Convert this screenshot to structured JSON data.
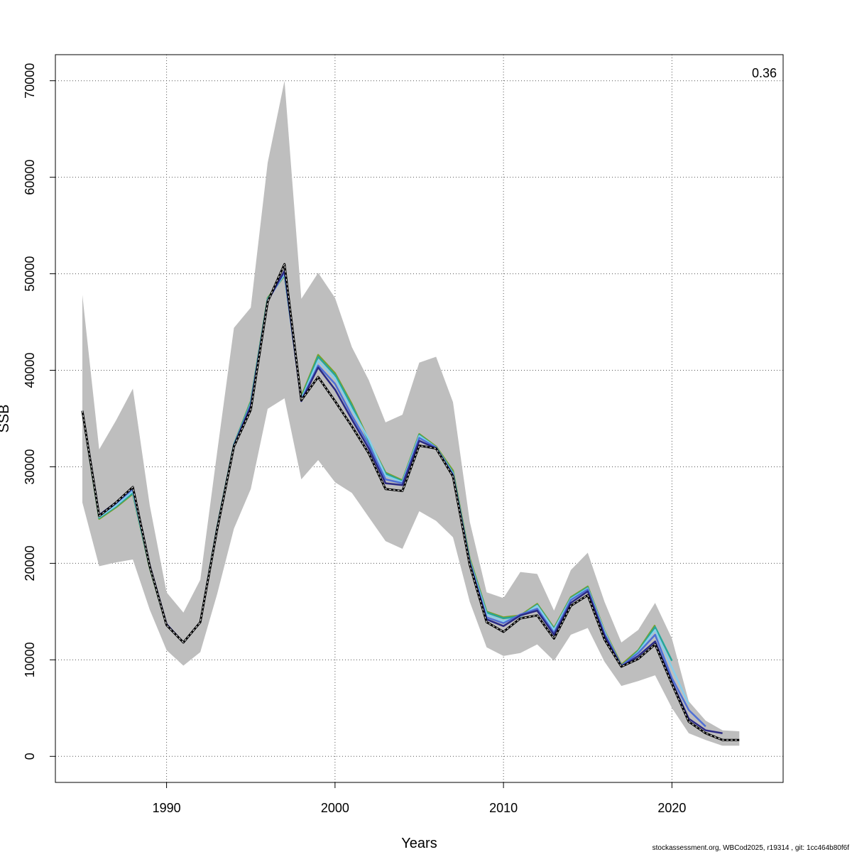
{
  "chart_data": {
    "type": "line",
    "xlabel": "Years",
    "ylabel": "SSB",
    "xlim": [
      1983.4,
      2026.6
    ],
    "ylim": [
      -2700,
      72700
    ],
    "x_ticks": [
      1990,
      2000,
      2010,
      2020
    ],
    "x_tick_labels": [
      "1990",
      "2000",
      "2010",
      "2020"
    ],
    "y_ticks": [
      0,
      10000,
      20000,
      30000,
      40000,
      50000,
      60000,
      70000
    ],
    "y_tick_labels": [
      "0",
      "10000",
      "20000",
      "30000",
      "40000",
      "50000",
      "60000",
      "70000"
    ],
    "grid": true,
    "corner_label": "0.36",
    "footer": "stockassessment.org, WBCod2025, r19314 , git: 1cc464b80f6f",
    "confidence_band": {
      "x": [
        1985,
        1986,
        1987,
        1988,
        1989,
        1990,
        1991,
        1992,
        1993,
        1994,
        1995,
        1996,
        1997,
        1998,
        1999,
        2000,
        2001,
        2002,
        2003,
        2004,
        2005,
        2006,
        2007,
        2008,
        2009,
        2010,
        2011,
        2012,
        2013,
        2014,
        2015,
        2016,
        2017,
        2018,
        2019,
        2020,
        2021,
        2022,
        2023,
        2024
      ],
      "upper": [
        47800,
        31800,
        34800,
        38100,
        26000,
        17000,
        14900,
        18300,
        31500,
        44400,
        46500,
        61500,
        70000,
        47400,
        50100,
        47500,
        42400,
        39000,
        34600,
        35400,
        40800,
        41400,
        36700,
        24300,
        17000,
        16400,
        19100,
        18900,
        15100,
        19300,
        21100,
        16000,
        11800,
        13100,
        15900,
        12200,
        5700,
        3700,
        2700,
        2600
      ],
      "lower": [
        26300,
        19700,
        20100,
        20400,
        15200,
        11000,
        9400,
        10800,
        16800,
        23600,
        27700,
        36000,
        37100,
        28700,
        30700,
        28400,
        27300,
        24800,
        22300,
        21500,
        25400,
        24400,
        22700,
        16000,
        11300,
        10400,
        10700,
        11600,
        9900,
        12600,
        13300,
        9800,
        7300,
        7800,
        8400,
        5000,
        2400,
        1700,
        1100,
        1100
      ]
    },
    "series": [
      {
        "color": "#000000",
        "style": "dashed-white",
        "x": [
          1985,
          1986,
          1987,
          1988,
          1989,
          1990,
          1991,
          1992,
          1993,
          1994,
          1995,
          1996,
          1997,
          1998,
          1999,
          2000,
          2001,
          2002,
          2003,
          2004,
          2005,
          2006,
          2007,
          2008,
          2009,
          2010,
          2011,
          2012,
          2013,
          2014,
          2015,
          2016,
          2017,
          2018,
          2019,
          2020,
          2021,
          2022,
          2023,
          2024
        ],
        "values": [
          35800,
          24900,
          26300,
          27900,
          19700,
          13600,
          11800,
          13900,
          23500,
          32100,
          35900,
          47100,
          51000,
          36900,
          39300,
          36800,
          34200,
          31400,
          27700,
          27500,
          32200,
          31900,
          29000,
          19800,
          13900,
          12900,
          14300,
          14600,
          12200,
          15600,
          16700,
          12100,
          9300,
          10100,
          11600,
          7500,
          3600,
          2400,
          1700,
          1700
        ]
      },
      {
        "color": "#2b2a84",
        "style": "solid",
        "x": [
          1985,
          1986,
          1987,
          1988,
          1989,
          1990,
          1991,
          1992,
          1993,
          1994,
          1995,
          1996,
          1997,
          1998,
          1999,
          2000,
          2001,
          2002,
          2003,
          2004,
          2005,
          2006,
          2007,
          2008,
          2009,
          2010,
          2011,
          2012,
          2013,
          2014,
          2015,
          2016,
          2017,
          2018,
          2019,
          2020,
          2021,
          2022,
          2023
        ],
        "values": [
          35800,
          25000,
          26300,
          27900,
          19800,
          13700,
          11800,
          13900,
          23600,
          32200,
          36300,
          47200,
          50300,
          36800,
          40300,
          38000,
          34900,
          31900,
          28300,
          28100,
          32700,
          31900,
          29100,
          20000,
          14200,
          13500,
          14600,
          15100,
          12600,
          15900,
          17100,
          12500,
          9300,
          10400,
          11900,
          7700,
          3900,
          2700,
          2400
        ]
      },
      {
        "color": "#4f6fd6",
        "style": "solid",
        "x": [
          1985,
          1986,
          1987,
          1988,
          1989,
          1990,
          1991,
          1992,
          1993,
          1994,
          1995,
          1996,
          1997,
          1998,
          1999,
          2000,
          2001,
          2002,
          2003,
          2004,
          2005,
          2006,
          2007,
          2008,
          2009,
          2010,
          2011,
          2012,
          2013,
          2014,
          2015,
          2016,
          2017,
          2018,
          2019,
          2020,
          2021,
          2022
        ],
        "values": [
          35800,
          24900,
          26200,
          27700,
          19700,
          13600,
          11800,
          13900,
          23600,
          32200,
          36400,
          47200,
          50200,
          36900,
          40500,
          38600,
          35300,
          32300,
          28700,
          28300,
          33000,
          32000,
          29200,
          20100,
          14400,
          13800,
          14700,
          15300,
          12800,
          16200,
          17300,
          12700,
          9400,
          10700,
          12600,
          8100,
          4800,
          3100
        ]
      },
      {
        "color": "#87ceeb",
        "style": "solid",
        "x": [
          1985,
          1986,
          1987,
          1988,
          1989,
          1990,
          1991,
          1992,
          1993,
          1994,
          1995,
          1996,
          1997,
          1998,
          1999,
          2000,
          2001,
          2002,
          2003,
          2004,
          2005,
          2006,
          2007,
          2008,
          2009,
          2010,
          2011,
          2012,
          2013,
          2014,
          2015,
          2016,
          2017,
          2018,
          2019,
          2020,
          2021
        ],
        "values": [
          35800,
          24800,
          26000,
          27500,
          19600,
          13600,
          11800,
          13900,
          23600,
          32200,
          36500,
          47300,
          50000,
          37000,
          41000,
          39200,
          35900,
          32900,
          29100,
          28400,
          33200,
          32000,
          29300,
          20200,
          14700,
          14000,
          14500,
          15600,
          13100,
          16300,
          17400,
          12900,
          9300,
          10800,
          13100,
          9200,
          5400
        ]
      },
      {
        "color": "#26a69a",
        "style": "solid",
        "x": [
          1985,
          1986,
          1987,
          1988,
          1989,
          1990,
          1991,
          1992,
          1993,
          1994,
          1995,
          1996,
          1997,
          1998,
          1999,
          2000,
          2001,
          2002,
          2003,
          2004,
          2005,
          2006,
          2007,
          2008,
          2009,
          2010,
          2011,
          2012,
          2013,
          2014,
          2015,
          2016,
          2017,
          2018,
          2019,
          2020
        ],
        "values": [
          35800,
          24700,
          25900,
          27300,
          19600,
          13600,
          11800,
          13900,
          23700,
          32300,
          36700,
          47400,
          49900,
          37100,
          41400,
          39500,
          36300,
          32700,
          29300,
          28500,
          33300,
          32000,
          29400,
          20300,
          14900,
          14300,
          14500,
          15700,
          13200,
          16400,
          17500,
          12900,
          9300,
          10900,
          13400,
          9900
        ]
      },
      {
        "color": "#7aa12a",
        "style": "solid",
        "x": [
          1985,
          1986,
          1987,
          1988,
          1989,
          1990,
          1991,
          1992,
          1993,
          1994,
          1995,
          1996,
          1997,
          1998,
          1999,
          2000,
          2001,
          2002,
          2003,
          2004,
          2005,
          2006,
          2007,
          2008,
          2009,
          2010,
          2011,
          2012,
          2013,
          2014,
          2015,
          2016,
          2017,
          2018,
          2019
        ],
        "values": [
          35800,
          24600,
          25800,
          27200,
          19500,
          13600,
          11800,
          13900,
          23700,
          32300,
          36800,
          47500,
          49800,
          37300,
          41600,
          39700,
          36500,
          32800,
          29400,
          28600,
          33400,
          32100,
          29600,
          20500,
          15000,
          14400,
          14600,
          15800,
          13300,
          16500,
          17600,
          13000,
          9500,
          11000,
          13600
        ]
      }
    ]
  }
}
